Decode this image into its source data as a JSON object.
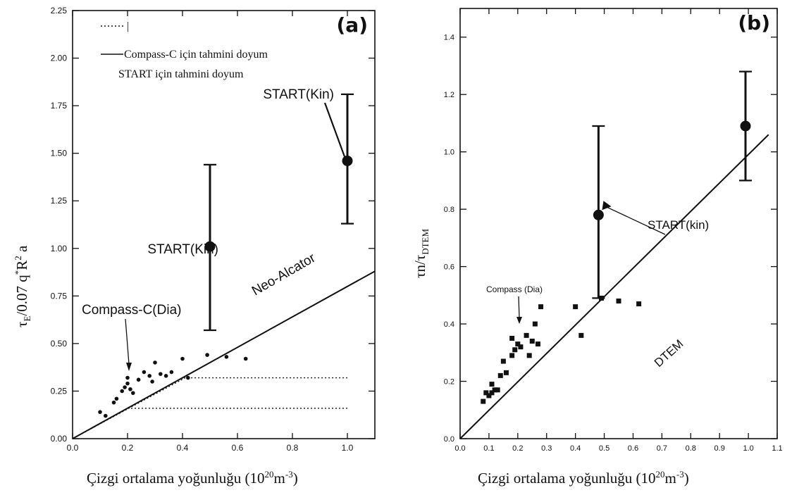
{
  "chart_data": [
    {
      "type": "scatter",
      "panel_label": "(a)",
      "ylabel": "τE/0.07 q*R2 a",
      "xlabel": "Çizgi ortalama yoğunluğu (1020m-3)",
      "xlim": [
        0.0,
        1.1
      ],
      "ylim": [
        0.0,
        2.25
      ],
      "x_ticks": [
        "0.0",
        "0.2",
        "0.4",
        "0.6",
        "0.8",
        "1.0"
      ],
      "y_ticks": [
        "0.00",
        "0.25",
        "0.50",
        "0.75",
        "1.00",
        "1.25",
        "1.50",
        "1.75",
        "2.00",
        "2.25"
      ],
      "legend": [
        {
          "style": "dotted",
          "label": "|"
        },
        {
          "style": "solid",
          "label": "Compass-C için tahmini doyum"
        },
        {
          "style": "none",
          "label": "START için tahmini doyum"
        }
      ],
      "compass_points": [
        {
          "x": 0.1,
          "y": 0.14
        },
        {
          "x": 0.12,
          "y": 0.12
        },
        {
          "x": 0.15,
          "y": 0.19
        },
        {
          "x": 0.16,
          "y": 0.21
        },
        {
          "x": 0.18,
          "y": 0.25
        },
        {
          "x": 0.19,
          "y": 0.27
        },
        {
          "x": 0.2,
          "y": 0.29
        },
        {
          "x": 0.2,
          "y": 0.32
        },
        {
          "x": 0.21,
          "y": 0.26
        },
        {
          "x": 0.22,
          "y": 0.24
        },
        {
          "x": 0.24,
          "y": 0.31
        },
        {
          "x": 0.26,
          "y": 0.35
        },
        {
          "x": 0.28,
          "y": 0.33
        },
        {
          "x": 0.29,
          "y": 0.3
        },
        {
          "x": 0.3,
          "y": 0.4
        },
        {
          "x": 0.32,
          "y": 0.34
        },
        {
          "x": 0.34,
          "y": 0.33
        },
        {
          "x": 0.36,
          "y": 0.35
        },
        {
          "x": 0.4,
          "y": 0.42
        },
        {
          "x": 0.42,
          "y": 0.32
        },
        {
          "x": 0.49,
          "y": 0.44
        },
        {
          "x": 0.56,
          "y": 0.43
        },
        {
          "x": 0.63,
          "y": 0.42
        }
      ],
      "start_points": [
        {
          "x": 0.5,
          "y": 1.01,
          "yerr_low": 0.57,
          "yerr_high": 1.44
        },
        {
          "x": 1.0,
          "y": 1.46,
          "yerr_low": 1.13,
          "yerr_high": 1.81
        }
      ],
      "lines": [
        {
          "name": "Neo-Alcator",
          "style": "solid",
          "x": [
            0.0,
            1.1
          ],
          "y": [
            0.0,
            0.88
          ]
        },
        {
          "style": "dotted",
          "x": [
            0.0,
            0.41,
            1.0
          ],
          "y": [
            0.0,
            0.32,
            0.32
          ]
        },
        {
          "style": "dotted",
          "x": [
            0.2,
            1.0
          ],
          "y": [
            0.16,
            0.16
          ]
        }
      ],
      "annotations": {
        "start_kin_lower": "START(Kin)",
        "start_kin_upper": "START(Kin)",
        "compass": "Compass-C(Dia)",
        "neo_alcator": "Neo-Alcator"
      }
    },
    {
      "type": "scatter",
      "panel_label": "(b)",
      "ylabel": "τn/τDTEM",
      "xlabel": "Çizgi ortalama yoğunluğu (1020m-3)",
      "xlim": [
        0.0,
        1.1
      ],
      "ylim": [
        0.0,
        1.5
      ],
      "x_ticks": [
        "0.0",
        "0.1",
        "0.2",
        "0.3",
        "0.4",
        "0.5",
        "0.6",
        "0.7",
        "0.8",
        "0.9",
        "1.0",
        "1.1"
      ],
      "y_ticks": [
        "0.0",
        "0.2",
        "0.4",
        "0.6",
        "0.8",
        "1.0",
        "1.2",
        "1.4"
      ],
      "compass_points": [
        {
          "x": 0.08,
          "y": 0.13
        },
        {
          "x": 0.09,
          "y": 0.16
        },
        {
          "x": 0.1,
          "y": 0.15
        },
        {
          "x": 0.11,
          "y": 0.19
        },
        {
          "x": 0.11,
          "y": 0.16
        },
        {
          "x": 0.12,
          "y": 0.17
        },
        {
          "x": 0.13,
          "y": 0.17
        },
        {
          "x": 0.14,
          "y": 0.22
        },
        {
          "x": 0.15,
          "y": 0.27
        },
        {
          "x": 0.16,
          "y": 0.23
        },
        {
          "x": 0.18,
          "y": 0.29
        },
        {
          "x": 0.18,
          "y": 0.35
        },
        {
          "x": 0.19,
          "y": 0.31
        },
        {
          "x": 0.2,
          "y": 0.33
        },
        {
          "x": 0.21,
          "y": 0.32
        },
        {
          "x": 0.23,
          "y": 0.36
        },
        {
          "x": 0.24,
          "y": 0.29
        },
        {
          "x": 0.25,
          "y": 0.34
        },
        {
          "x": 0.26,
          "y": 0.4
        },
        {
          "x": 0.27,
          "y": 0.33
        },
        {
          "x": 0.28,
          "y": 0.46
        },
        {
          "x": 0.4,
          "y": 0.46
        },
        {
          "x": 0.42,
          "y": 0.36
        },
        {
          "x": 0.49,
          "y": 0.49
        },
        {
          "x": 0.55,
          "y": 0.48
        },
        {
          "x": 0.62,
          "y": 0.47
        }
      ],
      "start_points": [
        {
          "x": 0.48,
          "y": 0.78,
          "yerr_low": 0.49,
          "yerr_high": 1.09
        },
        {
          "x": 0.99,
          "y": 1.09,
          "yerr_low": 0.9,
          "yerr_high": 1.28
        }
      ],
      "lines": [
        {
          "name": "DTEM",
          "style": "solid",
          "x": [
            0.0,
            1.07
          ],
          "y": [
            0.0,
            1.06
          ]
        }
      ],
      "annotations": {
        "start_kin": "START(kin)",
        "compass": "Compass (Dia)",
        "dtem": "DTEM"
      }
    }
  ],
  "ylabel_a_html": {
    "base": "τ",
    "sub": "E",
    "mid": "/0.07 q",
    "sup": "*",
    "r": "R",
    "sup2": "2",
    "end": " a"
  },
  "ylabel_b_html": {
    "base": "τn/τ",
    "sub": "DTEM"
  },
  "xlabel_html": {
    "pre": "Çizgi ortalama yoğunluğu (10",
    "sup1": "20",
    "mid": "m",
    "sup2": "-3",
    "end": ")"
  }
}
